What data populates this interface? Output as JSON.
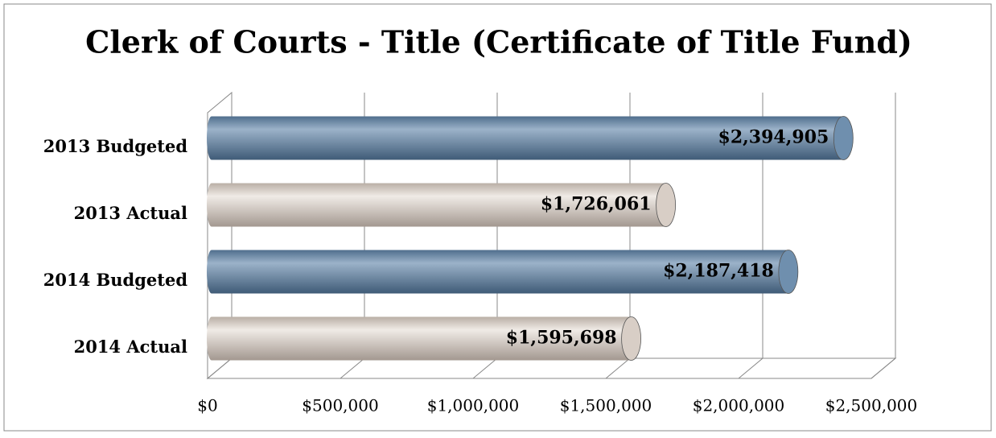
{
  "chart_data": {
    "type": "bar",
    "orientation": "horizontal",
    "title": "Clerk of Courts - Title (Certificate of Title Fund)",
    "categories": [
      "2013 Budgeted",
      "2013 Actual",
      "2014 Budgeted",
      "2014 Actual"
    ],
    "values": [
      2394905,
      1726061,
      2187418,
      1595698
    ],
    "value_labels": [
      "$2,394,905",
      "$1,726,061",
      "$2,187,418",
      "$1,595,698"
    ],
    "colors": [
      "#6f8fae",
      "#d8cec6",
      "#6f8fae",
      "#d8cec6"
    ],
    "xlim": [
      0,
      2500000
    ],
    "xticks": [
      {
        "value": 0,
        "label": "$0"
      },
      {
        "value": 500000,
        "label": "$500,000"
      },
      {
        "value": 1000000,
        "label": "$1,000,000"
      },
      {
        "value": 1500000,
        "label": "$1,500,000"
      },
      {
        "value": 2000000,
        "label": "$2,000,000"
      },
      {
        "value": 2500000,
        "label": "$2,500,000"
      }
    ],
    "grid": true
  }
}
